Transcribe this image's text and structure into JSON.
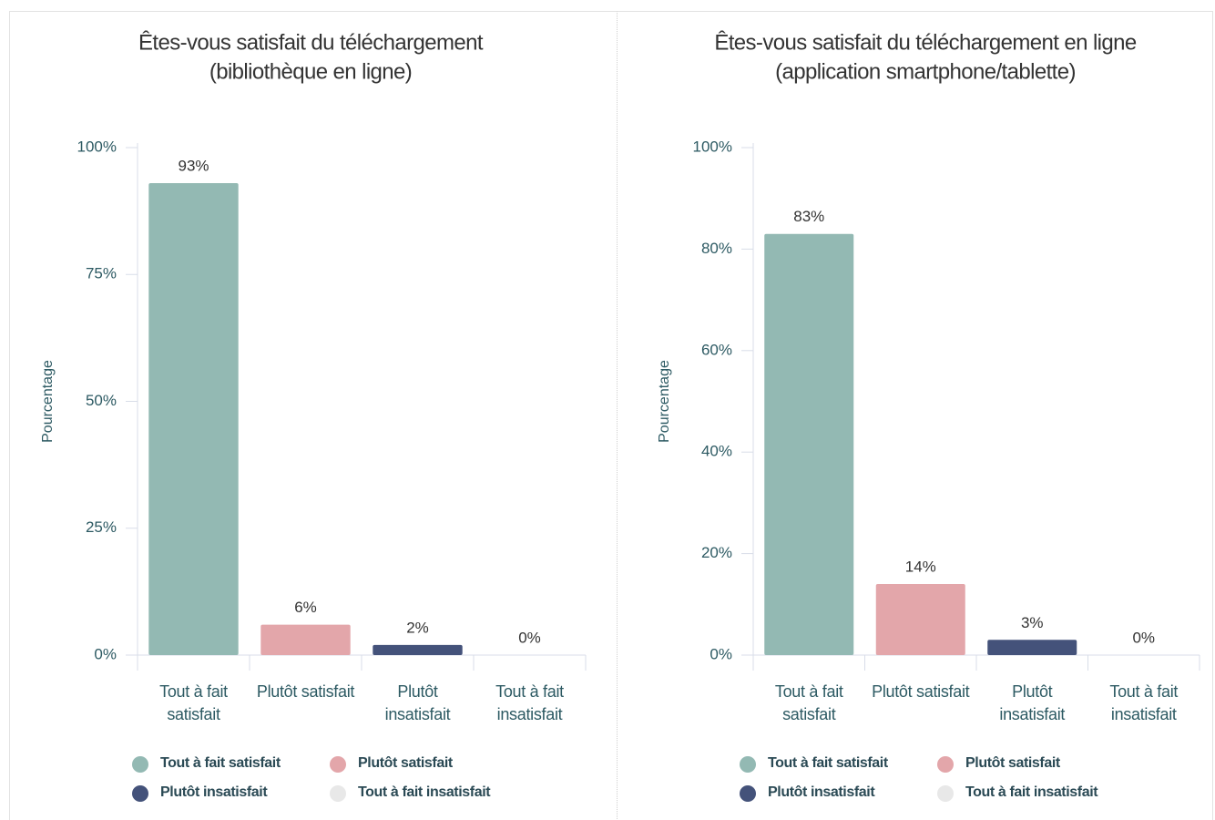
{
  "chart_data": [
    {
      "type": "bar",
      "title": [
        "Êtes-vous satisfait du téléchargement",
        "(bibliothèque en ligne)"
      ],
      "y_label": "Pourcentage",
      "categories": [
        "Tout à fait satisfait",
        "Plutôt satisfait",
        "Plutôt insatisfait",
        "Tout à fait insatisfait"
      ],
      "colors": [
        "#93b9b3",
        "#e3a6aa",
        "#44527a",
        "#e8e8e8"
      ],
      "values": [
        93,
        6,
        2,
        0
      ],
      "value_labels": [
        "93%",
        "6%",
        "2%",
        "0%"
      ],
      "ylim": [
        0,
        100
      ],
      "yticks": [
        {
          "value": 0,
          "label": "0%"
        },
        {
          "value": 25,
          "label": "25%"
        },
        {
          "value": 50,
          "label": "50%"
        },
        {
          "value": 75,
          "label": "75%"
        },
        {
          "value": 100,
          "label": "100%"
        }
      ],
      "grid": false
    },
    {
      "type": "bar",
      "title": [
        "Êtes-vous satisfait du téléchargement en ligne",
        "(application smartphone/tablette)"
      ],
      "y_label": "Pourcentage",
      "categories": [
        "Tout à fait satisfait",
        "Plutôt satisfait",
        "Plutôt insatisfait",
        "Tout à fait insatisfait"
      ],
      "colors": [
        "#93b9b3",
        "#e3a6aa",
        "#44527a",
        "#e8e8e8"
      ],
      "values": [
        83,
        14,
        3,
        0
      ],
      "value_labels": [
        "83%",
        "14%",
        "3%",
        "0%"
      ],
      "ylim": [
        0,
        100
      ],
      "yticks": [
        {
          "value": 0,
          "label": "0%"
        },
        {
          "value": 20,
          "label": "20%"
        },
        {
          "value": 40,
          "label": "40%"
        },
        {
          "value": 60,
          "label": "60%"
        },
        {
          "value": 80,
          "label": "80%"
        },
        {
          "value": 100,
          "label": "100%"
        }
      ],
      "grid": false
    }
  ]
}
